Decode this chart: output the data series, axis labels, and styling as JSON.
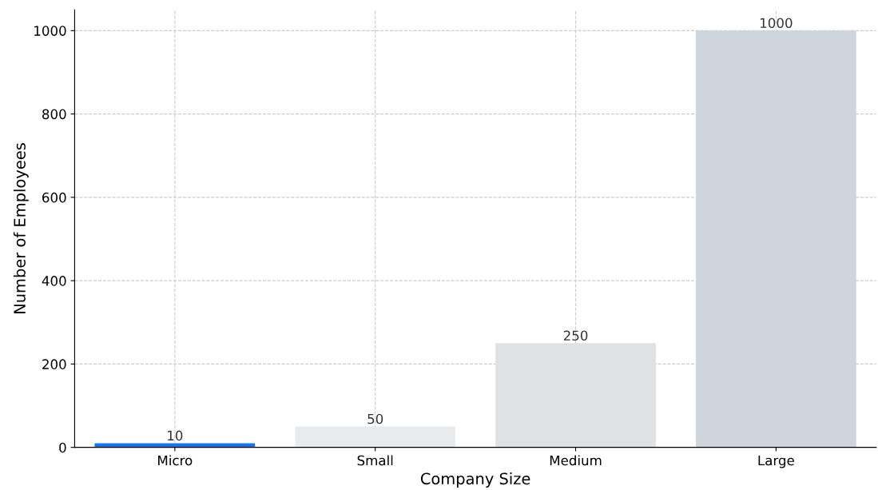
{
  "chart_data": {
    "type": "bar",
    "xlabel": "Company Size",
    "ylabel": "Number of Employees",
    "categories": [
      "Micro",
      "Small",
      "Medium",
      "Large"
    ],
    "values": [
      10,
      50,
      250,
      1000
    ],
    "colors": [
      "#1a73e8",
      "#e8ebee",
      "#dfe1e5",
      "#cfd5dd"
    ],
    "ylim": [
      0,
      1050
    ],
    "yticks": [
      0,
      200,
      400,
      600,
      800,
      1000
    ],
    "grid": true,
    "data_labels": true
  }
}
